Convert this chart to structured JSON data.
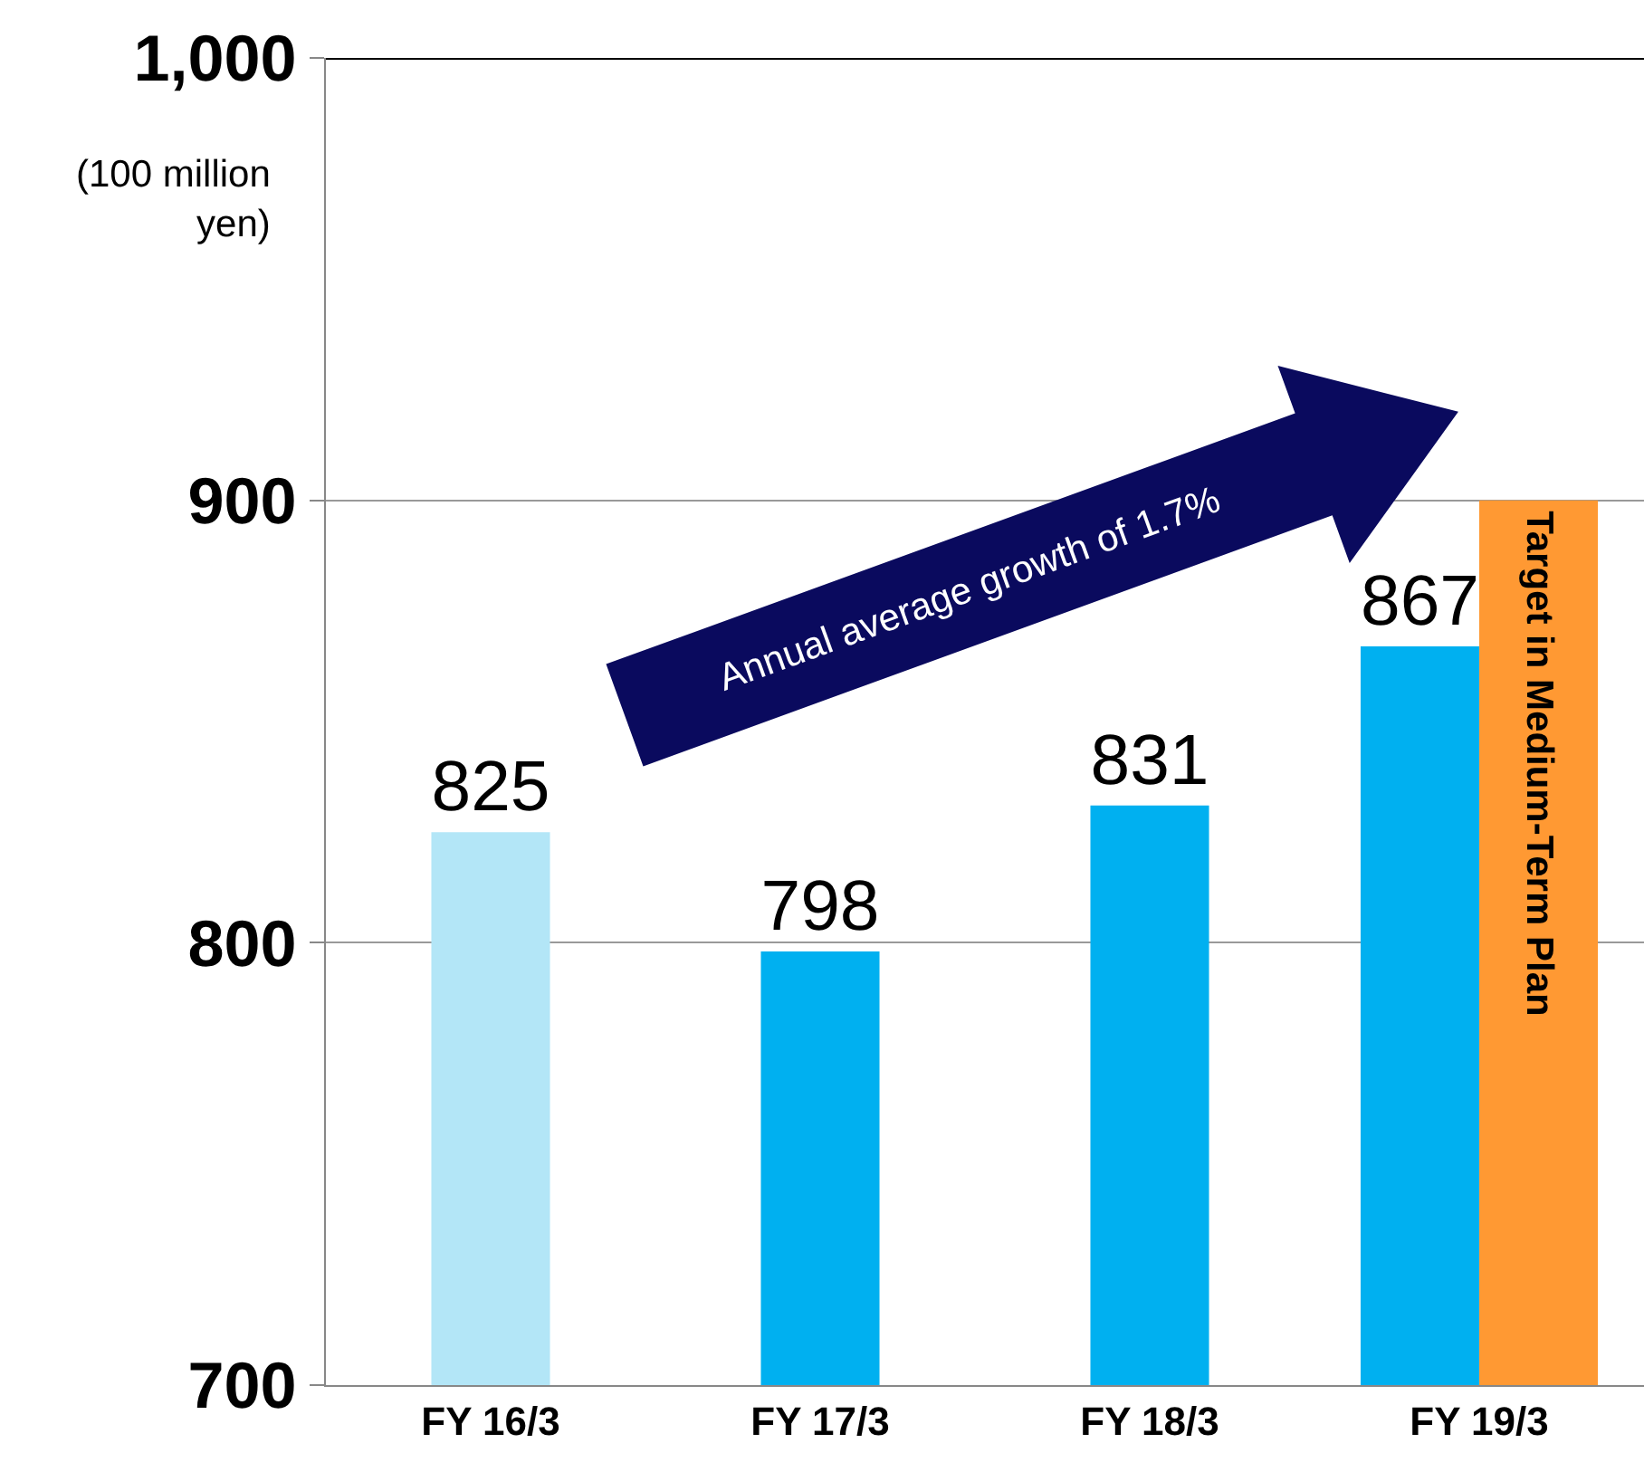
{
  "chart_data": {
    "type": "bar",
    "categories": [
      "FY 16/3",
      "FY 17/3",
      "FY 18/3",
      "FY 19/3"
    ],
    "series": [
      {
        "values": [
          825,
          798,
          831,
          867
        ],
        "colors": [
          "#b3e6f7",
          "#00b0f0",
          "#00b0f0",
          "#00b0f0"
        ],
        "value_labels": [
          "825",
          "798",
          "831",
          "867"
        ]
      },
      {
        "name": "Target in Medium-Term Plan",
        "color": "#ff9933",
        "values": [
          null,
          null,
          null,
          900
        ]
      }
    ],
    "ylabel": "(100 million yen)",
    "ylim": [
      700,
      1000
    ],
    "yticks": [
      700,
      800,
      900,
      {
        "value": 1000,
        "label": "1,000"
      }
    ],
    "grid": "y",
    "legend": false,
    "annotations": [
      "Annual average growth of 1.7%"
    ]
  }
}
